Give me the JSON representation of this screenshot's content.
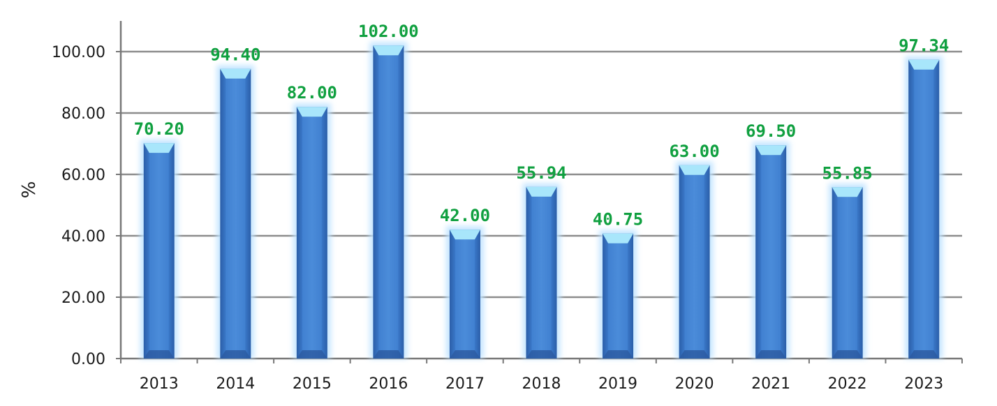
{
  "chart_data": {
    "type": "bar",
    "categories": [
      "2013",
      "2014",
      "2015",
      "2016",
      "2017",
      "2018",
      "2019",
      "2020",
      "2021",
      "2022",
      "2023"
    ],
    "values": [
      70.2,
      94.4,
      82.0,
      102.0,
      42.0,
      55.94,
      40.75,
      63.0,
      69.5,
      55.85,
      97.34
    ],
    "data_labels": [
      "70.20",
      "94.40",
      "82.00",
      "102.00",
      "42.00",
      "55.94",
      "40.75",
      "63.00",
      "69.50",
      "55.85",
      "97.34"
    ],
    "ylabel": "%",
    "ylim": [
      0,
      110
    ],
    "yticks": [
      "0.00",
      "20.00",
      "40.00",
      "60.00",
      "80.00",
      "100.00"
    ],
    "ytick_values": [
      0,
      20,
      40,
      60,
      80,
      100
    ],
    "grid": true,
    "legend": "none",
    "colors": {
      "bar": "#3a78c8",
      "bar_dark": "#2c5aa0",
      "bar_top": "#a8e6fb",
      "bar_glow": "#bfe3ff",
      "label": "#10a040",
      "grid": "#8c8c8c",
      "axis": "#777777"
    }
  }
}
